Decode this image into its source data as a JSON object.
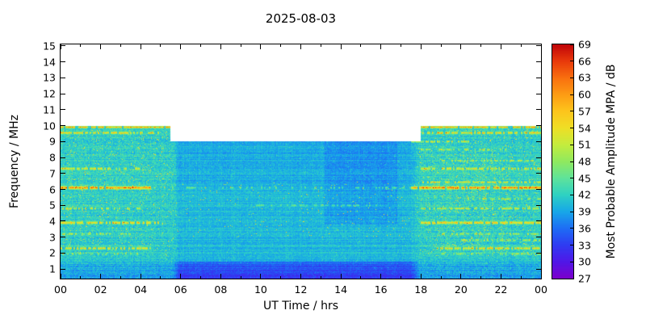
{
  "title": "2025-08-03",
  "axes": {
    "xlabel": "UT Time / hrs",
    "ylabel": "Frequency / MHz",
    "cblabel": "Most Probable Amplitude MPA / dB"
  },
  "chart_data": {
    "type": "heatmap",
    "title": "2025-08-03",
    "xlabel": "UT Time / hrs",
    "ylabel": "Frequency / MHz",
    "x_range_hours": [
      0,
      24
    ],
    "x_major_tick_hours": [
      0,
      2,
      4,
      6,
      8,
      10,
      12,
      14,
      16,
      18,
      20,
      22,
      24
    ],
    "x_tick_labels": [
      "00",
      "02",
      "04",
      "06",
      "08",
      "10",
      "12",
      "14",
      "16",
      "18",
      "20",
      "22",
      "00"
    ],
    "x_minor_tick_hours": [
      1,
      3,
      5,
      7,
      9,
      11,
      13,
      15,
      17,
      19,
      21,
      23
    ],
    "y_range_mhz": [
      0.4,
      15.1
    ],
    "y_ticks_mhz": [
      1,
      2,
      3,
      4,
      5,
      6,
      7,
      8,
      9,
      10,
      11,
      12,
      13,
      14,
      15
    ],
    "y_tick_labels": [
      "1",
      "2",
      "3",
      "4",
      "5",
      "6",
      "7",
      "8",
      "9",
      "10",
      "11",
      "12",
      "13",
      "14",
      "15"
    ],
    "grid": false,
    "legend": "colorbar-right",
    "colorbar": {
      "label": "Most Probable Amplitude MPA / dB",
      "range_db": [
        27,
        69
      ],
      "ticks_db": [
        27,
        30,
        33,
        36,
        39,
        42,
        45,
        48,
        51,
        54,
        57,
        60,
        63,
        66,
        69
      ],
      "tick_labels": [
        "27",
        "30",
        "33",
        "36",
        "39",
        "42",
        "45",
        "48",
        "51",
        "54",
        "57",
        "60",
        "63",
        "66",
        "69"
      ]
    },
    "colormap": [
      {
        "db": 27,
        "color": "#7a00cc"
      },
      {
        "db": 30,
        "color": "#5018e8"
      },
      {
        "db": 33,
        "color": "#2f3cf2"
      },
      {
        "db": 36,
        "color": "#1e6ef5"
      },
      {
        "db": 39,
        "color": "#17a8e8"
      },
      {
        "db": 42,
        "color": "#2fd2c3"
      },
      {
        "db": 45,
        "color": "#5fe39a"
      },
      {
        "db": 48,
        "color": "#90e95f"
      },
      {
        "db": 51,
        "color": "#c4ec3e"
      },
      {
        "db": 54,
        "color": "#efdf26"
      },
      {
        "db": 57,
        "color": "#fdc51c"
      },
      {
        "db": 60,
        "color": "#fd9c14"
      },
      {
        "db": 63,
        "color": "#f9700f"
      },
      {
        "db": 66,
        "color": "#e93a0b"
      },
      {
        "db": 69,
        "color": "#c00509"
      }
    ],
    "field": {
      "background_db": 41.6,
      "pixel_noise_db": 1.5,
      "day_start": 5.5,
      "day_end": 18,
      "max_freq_night_mhz": 10,
      "max_freq_day_mhz": 9,
      "day_absorption_db": 1.4,
      "low_band": {
        "f_max_mhz": 1.45,
        "day_drop_db": 6,
        "night_drop_db": 2.5
      },
      "day_blue_patch": {
        "hours": [
          13.2,
          16.8
        ],
        "f_mhz": [
          3.8,
          9.0
        ],
        "drop_db": 1.5
      },
      "interference_lines": [
        {
          "f": 1.95,
          "hw": 0.09,
          "db": 9,
          "hours": [
            [
              0,
              4
            ],
            [
              19,
              24
            ]
          ],
          "density": 0.5
        },
        {
          "f": 2.3,
          "hw": 0.11,
          "db": 18,
          "hours": [
            [
              0,
              4.5
            ],
            [
              18.5,
              24
            ]
          ],
          "density": 0.75
        },
        {
          "f": 2.8,
          "hw": 0.09,
          "db": 11,
          "hours": [
            [
              20,
              24
            ]
          ],
          "density": 0.5
        },
        {
          "f": 3.2,
          "hw": 0.09,
          "db": 11,
          "hours": [
            [
              0,
              3.5
            ],
            [
              19,
              24
            ]
          ],
          "density": 0.5
        },
        {
          "f": 3.9,
          "hw": 0.11,
          "db": 20,
          "hours": [
            [
              0,
              5
            ],
            [
              18,
              24
            ]
          ],
          "density": 0.8
        },
        {
          "f": 4.8,
          "hw": 0.1,
          "db": 14,
          "hours": [
            [
              0,
              4
            ],
            [
              18,
              24
            ]
          ],
          "density": 0.6
        },
        {
          "f": 5.0,
          "hw": 0.08,
          "db": 7,
          "hours": [
            [
              9.5,
              16
            ]
          ],
          "density": 0.35
        },
        {
          "f": 5.4,
          "hw": 0.08,
          "db": 11,
          "hours": [
            [
              20,
              24
            ]
          ],
          "density": 0.5
        },
        {
          "f": 6.1,
          "hw": 0.13,
          "db": 26,
          "hours": [
            [
              0,
              4.5
            ],
            [
              17.5,
              24
            ]
          ],
          "density": 0.9
        },
        {
          "f": 6.1,
          "hw": 0.09,
          "db": 8,
          "hours": [
            [
              4.5,
              17.5
            ]
          ],
          "density": 0.3
        },
        {
          "f": 6.45,
          "hw": 0.09,
          "db": 15,
          "hours": [
            [
              18,
              24
            ]
          ],
          "density": 0.6
        },
        {
          "f": 7.3,
          "hw": 0.11,
          "db": 16,
          "hours": [
            [
              0,
              4
            ],
            [
              18,
              24
            ]
          ],
          "density": 0.65
        },
        {
          "f": 7.8,
          "hw": 0.09,
          "db": 11,
          "hours": [
            [
              19,
              24
            ]
          ],
          "density": 0.5
        },
        {
          "f": 8.5,
          "hw": 0.09,
          "db": 12,
          "hours": [
            [
              18,
              22.5
            ]
          ],
          "density": 0.5
        },
        {
          "f": 9.0,
          "hw": 0.1,
          "db": 14,
          "hours": [
            [
              17.5,
              20.5
            ]
          ],
          "density": 0.6
        },
        {
          "f": 9.55,
          "hw": 0.11,
          "db": 16,
          "hours": [
            [
              0,
              5
            ],
            [
              18,
              24
            ]
          ],
          "density": 0.7
        },
        {
          "f": 9.9,
          "hw": 0.1,
          "db": 22,
          "hours": [
            [
              0,
              5.5
            ],
            [
              18,
              24
            ]
          ],
          "density": 0.85
        }
      ]
    }
  }
}
